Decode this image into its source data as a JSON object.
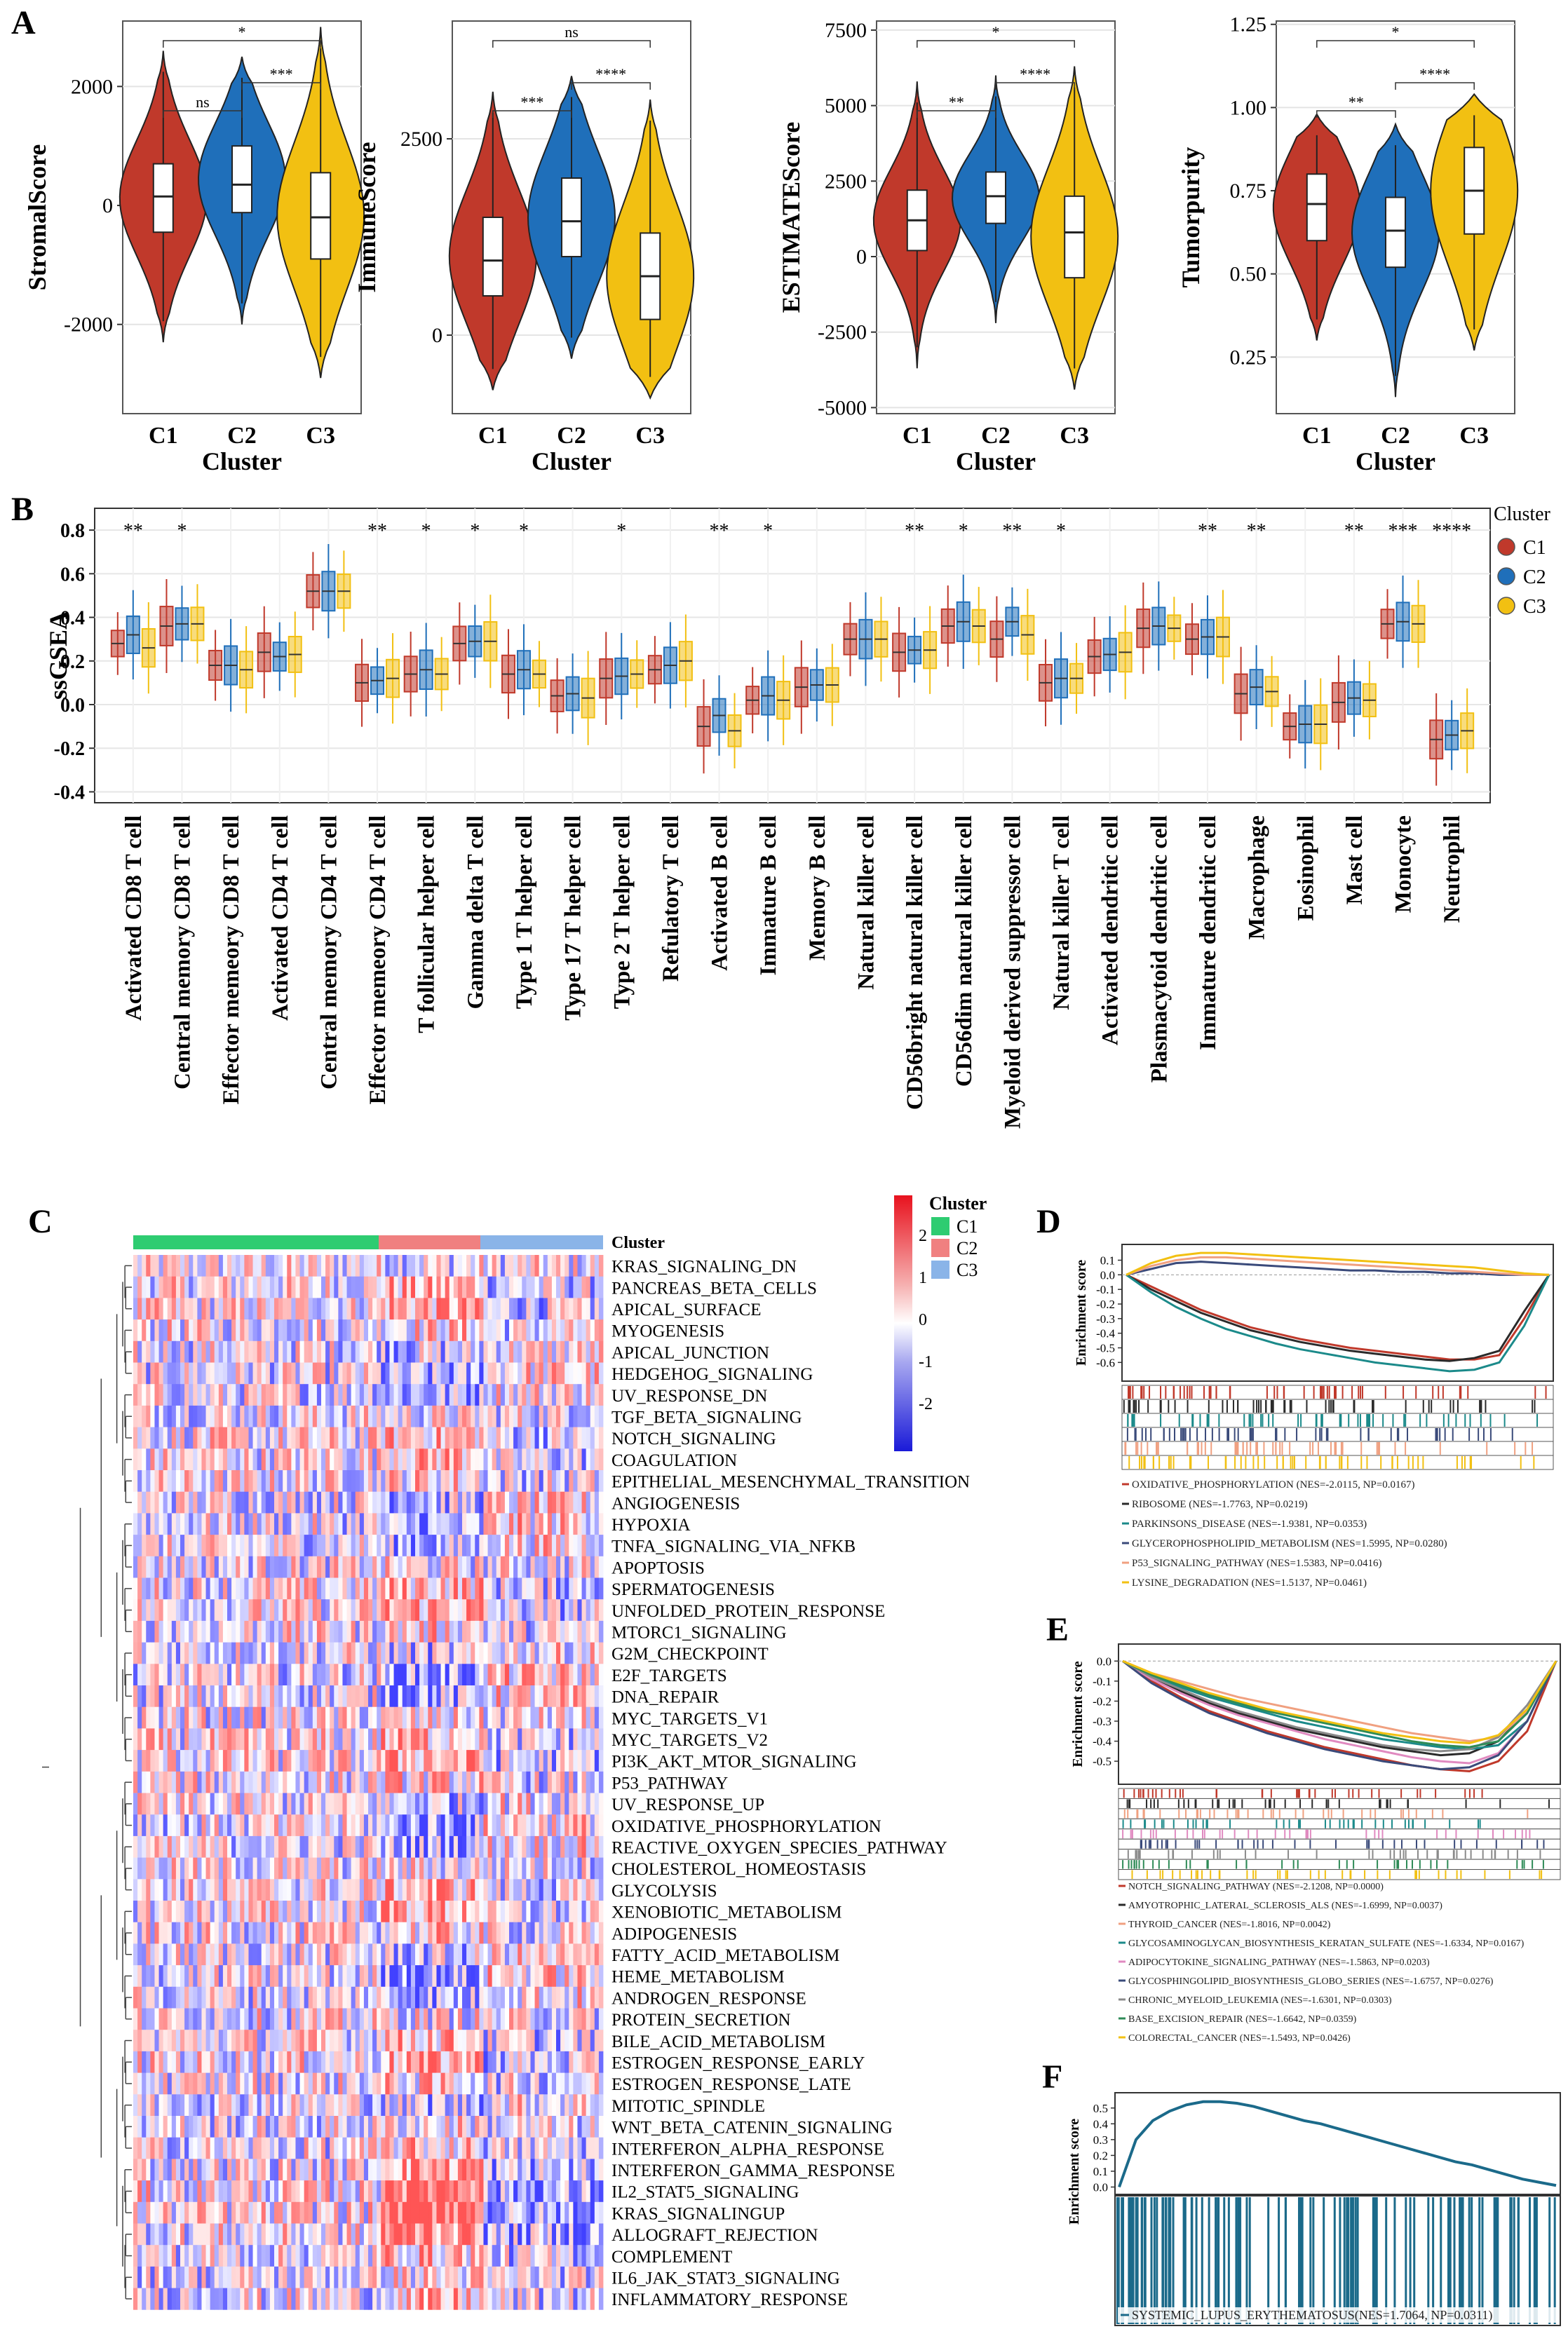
{
  "colors": {
    "C1": "#c0392b",
    "C2": "#1f6fba",
    "C3": "#f2c012",
    "green": "#2ecc71",
    "salmon": "#f08080",
    "lightblue": "#8ab4e8",
    "teal": "#1b7a8a"
  },
  "panels": {
    "A": "A",
    "B": "B",
    "C": "C",
    "D": "D",
    "E": "E",
    "F": "F"
  },
  "chart_data": [
    {
      "id": "A1",
      "type": "violin",
      "xlabel": "Cluster",
      "ylabel": "StromalScore",
      "categories": [
        "C1",
        "C2",
        "C3"
      ],
      "ylim": [
        -3500,
        3100
      ],
      "yticks": [
        -2000,
        0,
        2000
      ],
      "violins": [
        {
          "min": -2300,
          "q1": -450,
          "median": 150,
          "q3": 700,
          "max": 2600
        },
        {
          "min": -2000,
          "q1": -120,
          "median": 350,
          "q3": 1000,
          "max": 2500
        },
        {
          "min": -2900,
          "q1": -900,
          "median": -200,
          "q3": 550,
          "max": 3000
        }
      ],
      "comparisons": [
        {
          "from": 0,
          "to": 1,
          "label": "ns"
        },
        {
          "from": 0,
          "to": 2,
          "label": "*"
        },
        {
          "from": 1,
          "to": 2,
          "label": "***"
        }
      ]
    },
    {
      "id": "A2",
      "type": "violin",
      "xlabel": "Cluster",
      "ylabel": "ImmuneScore",
      "categories": [
        "C1",
        "C2",
        "C3"
      ],
      "ylim": [
        -1000,
        4000
      ],
      "yticks": [
        0,
        2500
      ],
      "violins": [
        {
          "min": -700,
          "q1": 500,
          "median": 950,
          "q3": 1500,
          "max": 3100
        },
        {
          "min": -300,
          "q1": 1000,
          "median": 1450,
          "q3": 2000,
          "max": 3300
        },
        {
          "min": -800,
          "q1": 200,
          "median": 750,
          "q3": 1300,
          "max": 3000
        }
      ],
      "comparisons": [
        {
          "from": 0,
          "to": 1,
          "label": "***"
        },
        {
          "from": 0,
          "to": 2,
          "label": "ns"
        },
        {
          "from": 1,
          "to": 2,
          "label": "****"
        }
      ]
    },
    {
      "id": "A3",
      "type": "violin",
      "xlabel": "Cluster",
      "ylabel": "ESTIMATEScore",
      "categories": [
        "C1",
        "C2",
        "C3"
      ],
      "ylim": [
        -5200,
        7800
      ],
      "yticks": [
        -5000,
        -2500,
        0,
        2500,
        5000,
        7500
      ],
      "violins": [
        {
          "min": -3700,
          "q1": 200,
          "median": 1200,
          "q3": 2200,
          "max": 5800
        },
        {
          "min": -2200,
          "q1": 1100,
          "median": 2000,
          "q3": 2800,
          "max": 6000
        },
        {
          "min": -4400,
          "q1": -700,
          "median": 800,
          "q3": 2000,
          "max": 6300
        }
      ],
      "comparisons": [
        {
          "from": 0,
          "to": 1,
          "label": "**"
        },
        {
          "from": 0,
          "to": 2,
          "label": "*"
        },
        {
          "from": 1,
          "to": 2,
          "label": "****"
        }
      ]
    },
    {
      "id": "A4",
      "type": "violin",
      "xlabel": "Cluster",
      "ylabel": "Tumorpurity",
      "categories": [
        "C1",
        "C2",
        "C3"
      ],
      "ylim": [
        0.08,
        1.26
      ],
      "yticks": [
        0.25,
        0.5,
        0.75,
        1.0,
        1.25
      ],
      "violins": [
        {
          "min": 0.3,
          "q1": 0.6,
          "median": 0.71,
          "q3": 0.8,
          "max": 0.98
        },
        {
          "min": 0.13,
          "q1": 0.52,
          "median": 0.63,
          "q3": 0.73,
          "max": 0.95
        },
        {
          "min": 0.27,
          "q1": 0.62,
          "median": 0.75,
          "q3": 0.88,
          "max": 1.04
        }
      ],
      "comparisons": [
        {
          "from": 0,
          "to": 1,
          "label": "**"
        },
        {
          "from": 0,
          "to": 2,
          "label": "*"
        },
        {
          "from": 1,
          "to": 2,
          "label": "****"
        }
      ]
    },
    {
      "id": "B",
      "type": "box",
      "ylabel": "ssGSEA",
      "legend_title": "Cluster",
      "legend": [
        "C1",
        "C2",
        "C3"
      ],
      "ylim": [
        -0.45,
        0.9
      ],
      "yticks": [
        -0.4,
        -0.2,
        0.0,
        0.2,
        0.4,
        0.6,
        0.8
      ],
      "categories": [
        "Activated CD8 T cell",
        "Central memory CD8 T cell",
        "Effector memeory CD8 T cell",
        "Activated CD4 T cell",
        "Central memory CD4 T cell",
        "Effector memeory CD4 T cell",
        "T follicular helper cell",
        "Gamma delta T cell",
        "Type 1 T helper cell",
        "Type 17 T helper cell",
        "Type 2 T helper cell",
        "Refulatory T cell",
        "Activated B cell",
        "Immature B cell",
        "Memory B cell",
        "Natural killer cell",
        "CD56bright natural killer cell",
        "CD56dim natural killer cell",
        "Myeloid derived suppressor cell",
        "Natural killer T cell",
        "Activated dendritic cell",
        "Plasmacytoid dendritic cell",
        "Immature dendritic cell",
        "Macrophage",
        "Eosinophil",
        "Mast cell",
        "Monocyte",
        "Neutrophil"
      ],
      "significance": [
        "**",
        "*",
        "",
        "",
        "",
        "**",
        "*",
        "*",
        "*",
        "",
        "*",
        "",
        "**",
        "*",
        "",
        "",
        "**",
        "*",
        "**",
        "*",
        "",
        "",
        "**",
        "**",
        "",
        "**",
        "***",
        "****"
      ],
      "medians": {
        "C1": [
          0.28,
          0.36,
          0.18,
          0.24,
          0.52,
          0.1,
          0.14,
          0.28,
          0.14,
          0.04,
          0.12,
          0.16,
          -0.1,
          0.02,
          0.08,
          0.3,
          0.24,
          0.36,
          0.3,
          0.1,
          0.22,
          0.35,
          0.3,
          0.05,
          -0.1,
          0.01,
          0.37,
          -0.16
        ],
        "C2": [
          0.32,
          0.37,
          0.18,
          0.22,
          0.52,
          0.11,
          0.16,
          0.29,
          0.16,
          0.05,
          0.13,
          0.18,
          -0.05,
          0.04,
          0.09,
          0.3,
          0.25,
          0.38,
          0.38,
          0.12,
          0.23,
          0.36,
          0.31,
          0.08,
          -0.09,
          0.03,
          0.38,
          -0.14
        ],
        "C3": [
          0.26,
          0.37,
          0.16,
          0.23,
          0.52,
          0.12,
          0.14,
          0.29,
          0.14,
          0.03,
          0.14,
          0.2,
          -0.12,
          0.02,
          0.09,
          0.3,
          0.25,
          0.36,
          0.32,
          0.12,
          0.24,
          0.35,
          0.31,
          0.06,
          -0.09,
          0.02,
          0.37,
          -0.12
        ]
      }
    },
    {
      "id": "C",
      "type": "heatmap",
      "legend_title": "Cluster",
      "legend": [
        "C1",
        "C2",
        "C3"
      ],
      "column_bar_label": "Cluster",
      "scale_ticks": [
        "2",
        "1",
        "0",
        "-1",
        "-2"
      ],
      "rows": [
        "KRAS_SIGNALING_DN",
        "PANCREAS_BETA_CELLS",
        "APICAL_SURFACE",
        "MYOGENESIS",
        "APICAL_JUNCTION",
        "HEDGEHOG_SIGNALING",
        "UV_RESPONSE_DN",
        "TGF_BETA_SIGNALING",
        "NOTCH_SIGNALING",
        "COAGULATION",
        "EPITHELIAL_MESENCHYMAL_TRANSITION",
        "ANGIOGENESIS",
        "HYPOXIA",
        "TNFA_SIGNALING_VIA_NFKB",
        "APOPTOSIS",
        "SPERMATOGENESIS",
        "UNFOLDED_PROTEIN_RESPONSE",
        "MTORC1_SIGNALING",
        "G2M_CHECKPOINT",
        "E2F_TARGETS",
        "DNA_REPAIR",
        "MYC_TARGETS_V1",
        "MYC_TARGETS_V2",
        "PI3K_AKT_MTOR_SIGNALING",
        "P53_PATHWAY",
        "UV_RESPONSE_UP",
        "OXIDATIVE_PHOSPHORYLATION",
        "REACTIVE_OXYGEN_SPECIES_PATHWAY",
        "CHOLESTEROL_HOMEOSTASIS",
        "GLYCOLYSIS",
        "XENOBIOTIC_METABOLISM",
        "ADIPOGENESIS",
        "FATTY_ACID_METABOLISM",
        "HEME_METABOLISM",
        "ANDROGEN_RESPONSE",
        "PROTEIN_SECRETION",
        "BILE_ACID_METABOLISM",
        "ESTROGEN_RESPONSE_EARLY",
        "ESTROGEN_RESPONSE_LATE",
        "MITOTIC_SPINDLE",
        "WNT_BETA_CATENIN_SIGNALING",
        "INTERFERON_ALPHA_RESPONSE",
        "INTERFERON_GAMMA_RESPONSE",
        "IL2_STAT5_SIGNALING",
        "KRAS_SIGNALINGUP",
        "ALLOGRAFT_REJECTION",
        "COMPLEMENT",
        "IL6_JAK_STAT3_SIGNALING",
        "INFLAMMATORY_RESPONSE"
      ]
    },
    {
      "id": "D",
      "type": "line",
      "ylabel": "Enrichment score",
      "yticks": [
        "0.1",
        "0.0",
        "-0.1",
        "-0.2",
        "-0.3",
        "-0.4",
        "-0.5",
        "-0.6"
      ],
      "ylim": [
        -0.68,
        0.16
      ],
      "series": [
        {
          "name": "OXIDATIVE_PHOSPHORYLATION (NES=-2.0115, NP=0.0167)",
          "color": "#c0392b",
          "values": [
            0,
            -0.08,
            -0.16,
            -0.24,
            -0.3,
            -0.36,
            -0.4,
            -0.44,
            -0.47,
            -0.5,
            -0.52,
            -0.54,
            -0.56,
            -0.58,
            -0.58,
            -0.55,
            -0.3,
            0
          ]
        },
        {
          "name": "RIBOSOME (NES=-1.7763, NP=0.0219)",
          "color": "#2a2a2a",
          "values": [
            0,
            -0.1,
            -0.18,
            -0.26,
            -0.32,
            -0.38,
            -0.42,
            -0.46,
            -0.49,
            -0.52,
            -0.54,
            -0.56,
            -0.58,
            -0.59,
            -0.57,
            -0.52,
            -0.25,
            0
          ]
        },
        {
          "name": "PARKINSONS_DISEASE (NES=-1.9381, NP=0.0353)",
          "color": "#1b8a8a",
          "values": [
            0,
            -0.12,
            -0.22,
            -0.3,
            -0.37,
            -0.42,
            -0.47,
            -0.51,
            -0.54,
            -0.57,
            -0.6,
            -0.62,
            -0.64,
            -0.66,
            -0.65,
            -0.6,
            -0.35,
            0
          ]
        },
        {
          "name": "GLYCEROPHOSPHOLIPID_METABOLISM (NES=1.5995, NP=0.0280)",
          "color": "#3a4a7a",
          "values": [
            0,
            0.04,
            0.08,
            0.09,
            0.08,
            0.07,
            0.06,
            0.05,
            0.04,
            0.03,
            0.03,
            0.02,
            0.02,
            0.01,
            0.01,
            0.0,
            0.0,
            0
          ]
        },
        {
          "name": "P53_SIGNALING_PATHWAY (NES=1.5383, NP=0.0416)",
          "color": "#f0a080",
          "values": [
            0,
            0.06,
            0.1,
            0.12,
            0.12,
            0.11,
            0.1,
            0.09,
            0.08,
            0.07,
            0.06,
            0.05,
            0.04,
            0.03,
            0.02,
            0.01,
            0.0,
            0
          ]
        },
        {
          "name": "LYSINE_DEGRADATION (NES=1.5137, NP=0.0461)",
          "color": "#f2c012",
          "values": [
            0,
            0.08,
            0.13,
            0.15,
            0.15,
            0.14,
            0.13,
            0.12,
            0.11,
            0.1,
            0.09,
            0.08,
            0.07,
            0.06,
            0.05,
            0.03,
            0.01,
            0
          ]
        }
      ]
    },
    {
      "id": "E",
      "type": "line",
      "ylabel": "Enrichment score",
      "yticks": [
        "0.0",
        "-0.1",
        "-0.2",
        "-0.3",
        "-0.4",
        "-0.5"
      ],
      "ylim": [
        -0.58,
        0.05
      ],
      "series": [
        {
          "name": "NOTCH_SIGNALING_PATHWAY (NES=-2.1208, NP=0.0000)",
          "color": "#c0392b",
          "values": [
            0,
            -0.1,
            -0.18,
            -0.25,
            -0.3,
            -0.35,
            -0.39,
            -0.43,
            -0.46,
            -0.49,
            -0.52,
            -0.54,
            -0.55,
            -0.5,
            -0.35,
            0
          ]
        },
        {
          "name": "AMYOTROPHIC_LATERAL_SCLEROSIS_ALS (NES=-1.6999, NP=0.0037)",
          "color": "#2a2a2a",
          "values": [
            0,
            -0.08,
            -0.15,
            -0.21,
            -0.26,
            -0.3,
            -0.34,
            -0.37,
            -0.4,
            -0.43,
            -0.45,
            -0.47,
            -0.46,
            -0.4,
            -0.25,
            0
          ]
        },
        {
          "name": "THYROID_CANCER (NES=-1.8016, NP=0.0042)",
          "color": "#f0a080",
          "values": [
            0,
            -0.06,
            -0.1,
            -0.14,
            -0.18,
            -0.21,
            -0.24,
            -0.27,
            -0.3,
            -0.33,
            -0.36,
            -0.38,
            -0.4,
            -0.38,
            -0.25,
            0
          ]
        },
        {
          "name": "GLYCOSAMINOGLYCAN_BIOSYNTHESIS_KERATAN_SULFATE (NES=-1.6334, NP=0.0167)",
          "color": "#1b8a8a",
          "values": [
            0,
            -0.07,
            -0.13,
            -0.18,
            -0.22,
            -0.26,
            -0.3,
            -0.33,
            -0.36,
            -0.39,
            -0.41,
            -0.43,
            -0.44,
            -0.42,
            -0.3,
            0
          ]
        },
        {
          "name": "ADIPOCYTOKINE_SIGNALING_PATHWAY (NES=-1.5863, NP=0.0203)",
          "color": "#e08ac0",
          "values": [
            0,
            -0.09,
            -0.16,
            -0.22,
            -0.27,
            -0.31,
            -0.35,
            -0.39,
            -0.42,
            -0.45,
            -0.48,
            -0.5,
            -0.51,
            -0.46,
            -0.3,
            0
          ]
        },
        {
          "name": "GLYCOSPHINGOLIPID_BIOSYNTHESIS_GLOBO_SERIES (NES=-1.6757, NP=0.0276)",
          "color": "#3a4a7a",
          "values": [
            0,
            -0.11,
            -0.19,
            -0.26,
            -0.31,
            -0.36,
            -0.4,
            -0.44,
            -0.47,
            -0.5,
            -0.52,
            -0.54,
            -0.53,
            -0.47,
            -0.3,
            0
          ]
        },
        {
          "name": "CHRONIC_MYELOID_LEUKEMIA (NES=-1.6301, NP=0.0303)",
          "color": "#8a8a8a",
          "values": [
            0,
            -0.08,
            -0.14,
            -0.2,
            -0.25,
            -0.29,
            -0.33,
            -0.36,
            -0.39,
            -0.42,
            -0.44,
            -0.45,
            -0.44,
            -0.38,
            -0.22,
            0
          ]
        },
        {
          "name": "BASE_EXCISION_REPAIR (NES=-1.6642, NP=0.0359)",
          "color": "#2e8b57",
          "values": [
            0,
            -0.07,
            -0.12,
            -0.17,
            -0.21,
            -0.25,
            -0.28,
            -0.31,
            -0.34,
            -0.37,
            -0.4,
            -0.42,
            -0.43,
            -0.4,
            -0.26,
            0
          ]
        },
        {
          "name": "COLORECTAL_CANCER (NES=-1.5493, NP=0.0426)",
          "color": "#f2c012",
          "values": [
            0,
            -0.06,
            -0.11,
            -0.16,
            -0.2,
            -0.24,
            -0.27,
            -0.3,
            -0.33,
            -0.36,
            -0.38,
            -0.4,
            -0.41,
            -0.37,
            -0.24,
            0
          ]
        }
      ]
    },
    {
      "id": "F",
      "type": "line",
      "ylabel": "Enrichment score",
      "yticks": [
        "0.5",
        "0.4",
        "0.3",
        "0.2",
        "0.1",
        "0.0"
      ],
      "ylim": [
        -0.02,
        0.57
      ],
      "series": [
        {
          "name": "SYSTEMIC_LUPUS_ERYTHEMATOSUS(NES=1.7064, NP=0.0311)",
          "color": "#1b6a8a",
          "values": [
            0,
            0.3,
            0.42,
            0.48,
            0.52,
            0.54,
            0.54,
            0.53,
            0.51,
            0.48,
            0.45,
            0.42,
            0.4,
            0.37,
            0.34,
            0.31,
            0.28,
            0.25,
            0.22,
            0.19,
            0.16,
            0.14,
            0.11,
            0.08,
            0.05,
            0.03,
            0.01
          ]
        }
      ]
    }
  ]
}
